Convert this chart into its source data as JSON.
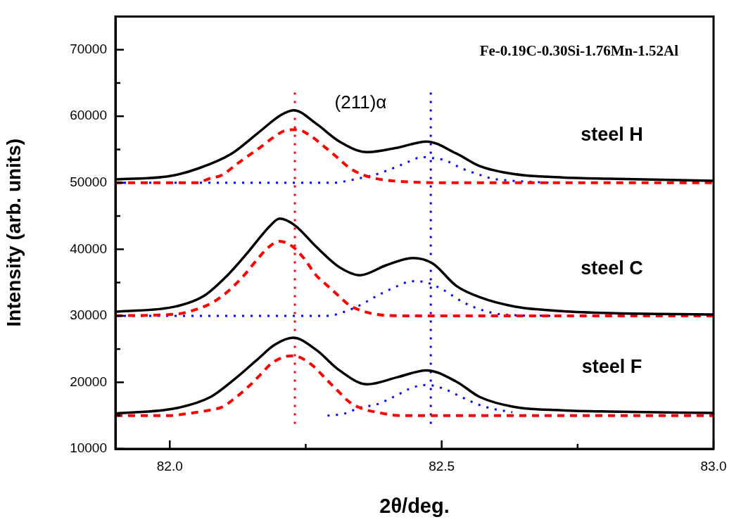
{
  "chart_data": {
    "type": "line",
    "title": "Fe-0.19C-0.30Si-1.76Mn-1.52Al",
    "xlabel": "2θ/deg.",
    "ylabel": "Intensity (arb. units)",
    "annotations": [
      "(211)α"
    ],
    "xlim": [
      81.9,
      83.0
    ],
    "xticks": [
      {
        "value": 82,
        "label": "82.0"
      },
      {
        "value": 82.25,
        "label": null
      },
      {
        "value": 82.5,
        "label": "82.5"
      },
      {
        "value": 82.75,
        "label": null
      },
      {
        "value": 83,
        "label": "83.0"
      }
    ],
    "ylim": [
      10000,
      75000
    ],
    "yticks": [
      10000,
      {
        "value": 15000,
        "label": null
      },
      20000,
      {
        "value": 25000,
        "label": null
      },
      30000,
      {
        "value": 35000,
        "label": null
      },
      40000,
      {
        "value": 45000,
        "label": null
      },
      50000,
      {
        "value": 55000,
        "label": null
      },
      60000,
      {
        "value": 65000,
        "label": null
      },
      70000
    ],
    "grid": false,
    "legend": false,
    "marker": "none",
    "ref_lines": [
      {
        "axis": "x",
        "value": 82.23,
        "color": "#ff0000",
        "line_style": "dotted"
      },
      {
        "axis": "x",
        "value": 82.48,
        "color": "#0000ff",
        "line_style": "dotted"
      }
    ],
    "series": [
      {
        "name": "steel H",
        "color": "#000000",
        "line_style": "solid",
        "x": [
          81.9,
          82.0,
          82.054,
          82.114,
          82.161,
          82.205,
          82.228,
          82.269,
          82.312,
          82.363,
          82.42,
          82.472,
          82.527,
          82.57,
          82.634,
          82.721,
          82.807,
          83.0
        ],
        "values": [
          50500,
          51000,
          52200,
          54400,
          57400,
          60200,
          60900,
          58900,
          56200,
          54600,
          55300,
          56200,
          54400,
          52500,
          51300,
          50800,
          50600,
          50300
        ]
      },
      {
        "color": "#ff0000",
        "line_style": "dashed",
        "x": [
          81.9,
          82.05,
          82.072,
          82.097,
          82.123,
          82.14,
          82.166,
          82.192,
          82.214,
          82.234,
          82.26,
          82.286,
          82.308,
          82.331,
          82.355,
          82.381,
          82.424,
          82.527,
          83.0
        ],
        "values": [
          50000,
          50000,
          50600,
          51200,
          52800,
          53800,
          55300,
          56900,
          57900,
          58000,
          57000,
          55300,
          53800,
          52200,
          51200,
          50600,
          50200,
          50000,
          50000
        ]
      },
      {
        "color": "#0000ff",
        "line_style": "dotted",
        "x": [
          81.9,
          82.3,
          82.321,
          82.35,
          82.381,
          82.414,
          82.446,
          82.463,
          82.473,
          82.505,
          82.536,
          82.566,
          82.595,
          82.63,
          82.7
        ],
        "values": [
          50000,
          50000,
          50200,
          50700,
          51300,
          52300,
          53400,
          53900,
          53800,
          53400,
          52200,
          51300,
          50600,
          50300,
          50000
        ]
      },
      {
        "name": "steel C",
        "color": "#000000",
        "line_style": "solid",
        "x": [
          81.901,
          82.011,
          82.063,
          82.105,
          82.14,
          82.162,
          82.183,
          82.202,
          82.23,
          82.269,
          82.312,
          82.35,
          82.398,
          82.447,
          82.483,
          82.527,
          82.57,
          82.634,
          82.721,
          82.807,
          83.0
        ],
        "values": [
          30600,
          31400,
          33000,
          36000,
          39200,
          41400,
          43400,
          44600,
          43600,
          40400,
          37300,
          36100,
          37600,
          38700,
          37900,
          34500,
          32800,
          31400,
          30700,
          30400,
          30200
        ]
      },
      {
        "color": "#ff0000",
        "line_style": "dashed",
        "x": [
          81.9,
          82.002,
          82.024,
          82.046,
          82.072,
          82.097,
          82.118,
          82.14,
          82.162,
          82.183,
          82.202,
          82.226,
          82.247,
          82.269,
          82.286,
          82.308,
          82.33,
          82.355,
          82.381,
          82.424,
          83.0
        ],
        "values": [
          30000,
          30200,
          30400,
          30900,
          31700,
          33000,
          34500,
          36400,
          38600,
          40400,
          41200,
          40400,
          38600,
          36100,
          34800,
          33200,
          31600,
          30700,
          30200,
          30000,
          30000
        ]
      },
      {
        "color": "#0000ff",
        "line_style": "dotted",
        "x": [
          81.9,
          82.29,
          82.321,
          82.35,
          82.381,
          82.414,
          82.446,
          82.473,
          82.505,
          82.536,
          82.566,
          82.595,
          82.63,
          82.7
        ],
        "values": [
          30000,
          30000,
          30600,
          31600,
          33000,
          34300,
          35200,
          35000,
          33800,
          32200,
          31100,
          30400,
          30100,
          30000
        ]
      },
      {
        "name": "steel F",
        "color": "#000000",
        "line_style": "solid",
        "x": [
          81.9,
          82.011,
          82.075,
          82.118,
          82.162,
          82.192,
          82.227,
          82.269,
          82.312,
          82.363,
          82.42,
          82.472,
          82.527,
          82.57,
          82.634,
          82.721,
          82.807,
          83.0
        ],
        "values": [
          15300,
          16100,
          17800,
          20400,
          23500,
          25600,
          26700,
          24900,
          21800,
          19700,
          20800,
          21800,
          20100,
          17800,
          16300,
          15800,
          15600,
          15400
        ]
      },
      {
        "color": "#ff0000",
        "line_style": "dashed",
        "x": [
          81.9,
          82.0,
          82.024,
          82.072,
          82.097,
          82.118,
          82.144,
          82.166,
          82.188,
          82.214,
          82.227,
          82.26,
          82.286,
          82.308,
          82.331,
          82.355,
          82.381,
          82.424,
          83.0
        ],
        "values": [
          15000,
          15000,
          15200,
          15800,
          16300,
          17500,
          19300,
          21100,
          22900,
          23900,
          24000,
          22700,
          20600,
          18800,
          17000,
          16000,
          15500,
          15000,
          15000
        ]
      },
      {
        "color": "#0000ff",
        "line_style": "dotted",
        "x": [
          82.29,
          82.321,
          82.35,
          82.381,
          82.414,
          82.446,
          82.473,
          82.505,
          82.536,
          82.566,
          82.595,
          82.63
        ],
        "values": [
          15000,
          15300,
          16200,
          16700,
          17900,
          19200,
          19600,
          19000,
          17800,
          16700,
          16000,
          15500
        ]
      }
    ]
  }
}
